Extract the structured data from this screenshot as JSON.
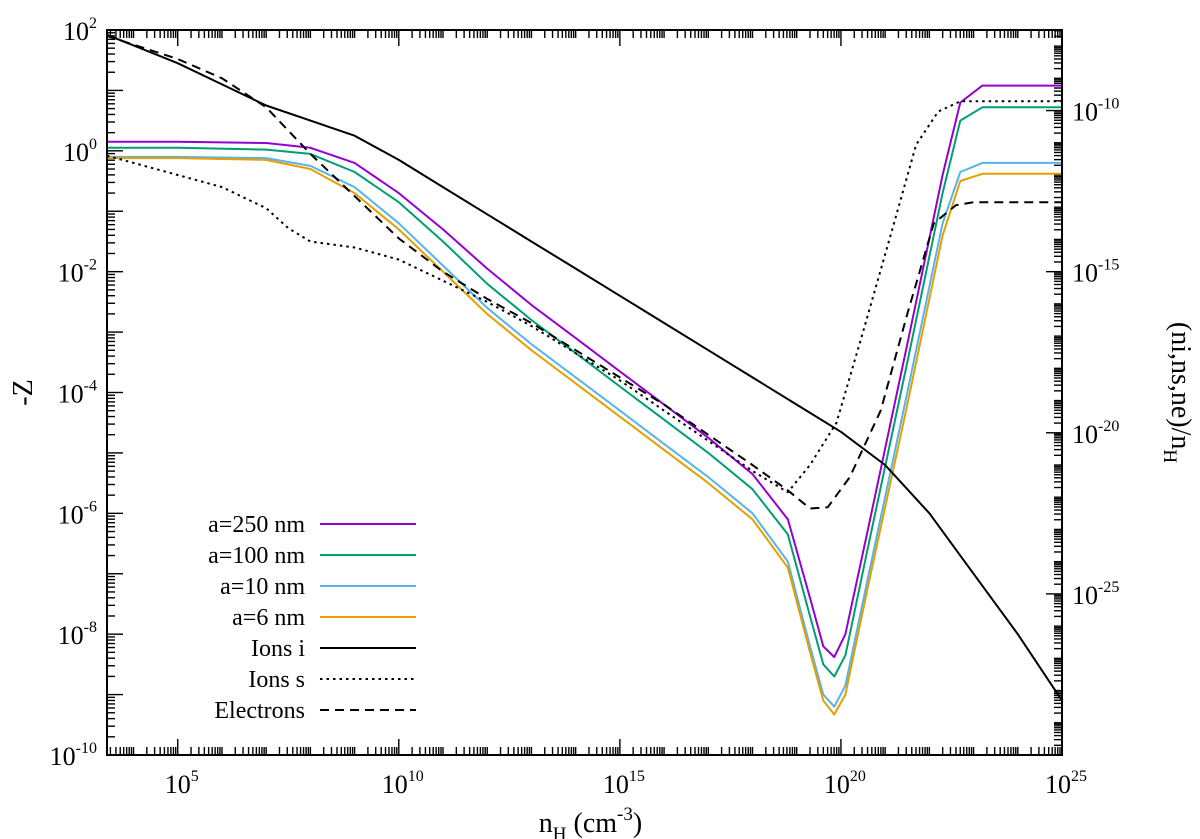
{
  "chart_data": {
    "type": "line",
    "title": "",
    "xlabel": {
      "base": "n",
      "sub": "H",
      "unit_open": " (cm",
      "unit_sup": "-3",
      "unit_close": ")"
    },
    "ylabel": "-Z",
    "y2label": {
      "text": "(ni,ns,ne)/n",
      "sub": "H"
    },
    "xscale": "log",
    "yscale": "log",
    "xlim_log10": [
      3.4,
      25
    ],
    "ylim_log10": [
      -10,
      2
    ],
    "y2lim_log10": [
      -30,
      -7.5
    ],
    "x_ticks": [
      {
        "base": "10",
        "exp": "5",
        "value_log10": 5
      },
      {
        "base": "10",
        "exp": "10",
        "value_log10": 10
      },
      {
        "base": "10",
        "exp": "15",
        "value_log10": 15
      },
      {
        "base": "10",
        "exp": "20",
        "value_log10": 20
      },
      {
        "base": "10",
        "exp": "25",
        "value_log10": 25
      }
    ],
    "y_ticks": [
      {
        "base": "10",
        "exp": "-10",
        "value_log10": -10
      },
      {
        "base": "10",
        "exp": "-8",
        "value_log10": -8
      },
      {
        "base": "10",
        "exp": "-6",
        "value_log10": -6
      },
      {
        "base": "10",
        "exp": "-4",
        "value_log10": -4
      },
      {
        "base": "10",
        "exp": "-2",
        "value_log10": -2
      },
      {
        "base": "10",
        "exp": "0",
        "value_log10": 0
      },
      {
        "base": "10",
        "exp": "2",
        "value_log10": 2
      }
    ],
    "y2_ticks": [
      {
        "base": "10",
        "exp": "-25",
        "value_log10": -25
      },
      {
        "base": "10",
        "exp": "-20",
        "value_log10": -20
      },
      {
        "base": "10",
        "exp": "-15",
        "value_log10": -15
      },
      {
        "base": "10",
        "exp": "-10",
        "value_log10": -10
      }
    ],
    "legend_position": "bottom-left",
    "series": [
      {
        "name": "a=250 nm",
        "color": "#9400D3",
        "dash": "solid",
        "axis": "y",
        "points_log10": [
          [
            3.4,
            0.15
          ],
          [
            5,
            0.15
          ],
          [
            7,
            0.13
          ],
          [
            8,
            0.05
          ],
          [
            9,
            -0.2
          ],
          [
            10,
            -0.7
          ],
          [
            11,
            -1.3
          ],
          [
            12,
            -1.95
          ],
          [
            13,
            -2.55
          ],
          [
            14,
            -3.1
          ],
          [
            15,
            -3.65
          ],
          [
            16,
            -4.2
          ],
          [
            17,
            -4.75
          ],
          [
            18,
            -5.35
          ],
          [
            18.8,
            -6.1
          ],
          [
            19.3,
            -7.4
          ],
          [
            19.6,
            -8.2
          ],
          [
            19.85,
            -8.38
          ],
          [
            20.1,
            -8.0
          ],
          [
            20.6,
            -6.3
          ],
          [
            21.5,
            -3.2
          ],
          [
            22.3,
            -0.4
          ],
          [
            22.7,
            0.8
          ],
          [
            23.2,
            1.08
          ],
          [
            25,
            1.08
          ]
        ]
      },
      {
        "name": "a=100 nm",
        "color": "#009E73",
        "dash": "solid",
        "axis": "y",
        "points_log10": [
          [
            3.4,
            0.05
          ],
          [
            5,
            0.05
          ],
          [
            7,
            0.02
          ],
          [
            8,
            -0.05
          ],
          [
            9,
            -0.35
          ],
          [
            10,
            -0.85
          ],
          [
            11,
            -1.5
          ],
          [
            12,
            -2.2
          ],
          [
            13,
            -2.8
          ],
          [
            14,
            -3.35
          ],
          [
            15,
            -3.9
          ],
          [
            16,
            -4.45
          ],
          [
            17,
            -5.0
          ],
          [
            18,
            -5.6
          ],
          [
            18.8,
            -6.35
          ],
          [
            19.3,
            -7.7
          ],
          [
            19.6,
            -8.5
          ],
          [
            19.85,
            -8.7
          ],
          [
            20.1,
            -8.35
          ],
          [
            20.6,
            -6.6
          ],
          [
            21.5,
            -3.5
          ],
          [
            22.3,
            -0.7
          ],
          [
            22.7,
            0.5
          ],
          [
            23.2,
            0.72
          ],
          [
            25,
            0.72
          ]
        ]
      },
      {
        "name": "a=10 nm",
        "color": "#56B4E9",
        "dash": "solid",
        "axis": "y",
        "points_log10": [
          [
            3.4,
            -0.1
          ],
          [
            5,
            -0.1
          ],
          [
            7,
            -0.12
          ],
          [
            8,
            -0.25
          ],
          [
            9,
            -0.6
          ],
          [
            10,
            -1.2
          ],
          [
            11,
            -1.9
          ],
          [
            12,
            -2.6
          ],
          [
            13,
            -3.2
          ],
          [
            14,
            -3.75
          ],
          [
            15,
            -4.3
          ],
          [
            16,
            -4.85
          ],
          [
            17,
            -5.4
          ],
          [
            18,
            -6.0
          ],
          [
            18.8,
            -6.8
          ],
          [
            19.3,
            -8.2
          ],
          [
            19.6,
            -9.0
          ],
          [
            19.85,
            -9.2
          ],
          [
            20.1,
            -8.85
          ],
          [
            20.6,
            -7.1
          ],
          [
            21.5,
            -4.0
          ],
          [
            22.3,
            -1.2
          ],
          [
            22.7,
            -0.35
          ],
          [
            23.2,
            -0.2
          ],
          [
            25,
            -0.2
          ]
        ]
      },
      {
        "name": "a=6 nm",
        "color": "#E69F00",
        "dash": "solid",
        "axis": "y",
        "points_log10": [
          [
            3.4,
            -0.12
          ],
          [
            5,
            -0.12
          ],
          [
            7,
            -0.15
          ],
          [
            8,
            -0.3
          ],
          [
            9,
            -0.7
          ],
          [
            10,
            -1.3
          ],
          [
            11,
            -2.0
          ],
          [
            12,
            -2.7
          ],
          [
            13,
            -3.3
          ],
          [
            14,
            -3.85
          ],
          [
            15,
            -4.4
          ],
          [
            16,
            -4.95
          ],
          [
            17,
            -5.5
          ],
          [
            18,
            -6.1
          ],
          [
            18.8,
            -6.9
          ],
          [
            19.3,
            -8.3
          ],
          [
            19.6,
            -9.1
          ],
          [
            19.85,
            -9.33
          ],
          [
            20.1,
            -9.0
          ],
          [
            20.6,
            -7.25
          ],
          [
            21.5,
            -4.2
          ],
          [
            22.3,
            -1.4
          ],
          [
            22.7,
            -0.5
          ],
          [
            23.2,
            -0.38
          ],
          [
            25,
            -0.38
          ]
        ]
      },
      {
        "name": "Ions i",
        "color": "#000000",
        "dash": "solid",
        "axis": "y",
        "points_log10": [
          [
            3.4,
            1.92
          ],
          [
            5,
            1.45
          ],
          [
            6,
            1.1
          ],
          [
            7,
            0.75
          ],
          [
            8,
            0.5
          ],
          [
            9,
            0.25
          ],
          [
            10,
            -0.15
          ],
          [
            11,
            -0.6
          ],
          [
            12,
            -1.05
          ],
          [
            13,
            -1.5
          ],
          [
            14,
            -1.95
          ],
          [
            15,
            -2.4
          ],
          [
            16,
            -2.85
          ],
          [
            17,
            -3.3
          ],
          [
            18,
            -3.75
          ],
          [
            19,
            -4.2
          ],
          [
            20,
            -4.65
          ],
          [
            21,
            -5.2
          ],
          [
            22,
            -6.0
          ],
          [
            23,
            -7.0
          ],
          [
            24,
            -8.0
          ],
          [
            25,
            -9.1
          ]
        ]
      },
      {
        "name": "Ions s",
        "color": "#000000",
        "dash": "dotted",
        "axis": "y",
        "points_log10": [
          [
            3.4,
            -0.08
          ],
          [
            4,
            -0.2
          ],
          [
            5,
            -0.4
          ],
          [
            6,
            -0.6
          ],
          [
            7,
            -0.95
          ],
          [
            7.5,
            -1.28
          ],
          [
            8,
            -1.5
          ],
          [
            9,
            -1.6
          ],
          [
            10,
            -1.8
          ],
          [
            11,
            -2.15
          ],
          [
            12,
            -2.5
          ],
          [
            13,
            -2.9
          ],
          [
            14,
            -3.35
          ],
          [
            15,
            -3.8
          ],
          [
            16,
            -4.3
          ],
          [
            17,
            -4.8
          ],
          [
            18,
            -5.3
          ],
          [
            18.8,
            -5.65
          ],
          [
            19.3,
            -5.2
          ],
          [
            19.9,
            -4.5
          ],
          [
            20.5,
            -3.0
          ],
          [
            21.2,
            -1.2
          ],
          [
            21.7,
            0.1
          ],
          [
            22.2,
            0.65
          ],
          [
            22.7,
            0.82
          ],
          [
            25,
            0.82
          ]
        ]
      },
      {
        "name": "Electrons",
        "color": "#000000",
        "dash": "dashed",
        "axis": "y",
        "points_log10": [
          [
            3.4,
            1.9
          ],
          [
            5,
            1.52
          ],
          [
            6,
            1.2
          ],
          [
            7,
            0.72
          ],
          [
            8,
            -0.05
          ],
          [
            9,
            -0.75
          ],
          [
            10,
            -1.45
          ],
          [
            11,
            -2.0
          ],
          [
            12,
            -2.45
          ],
          [
            13,
            -2.85
          ],
          [
            14,
            -3.3
          ],
          [
            15,
            -3.75
          ],
          [
            16,
            -4.2
          ],
          [
            17,
            -4.7
          ],
          [
            18,
            -5.2
          ],
          [
            18.8,
            -5.62
          ],
          [
            19.3,
            -5.92
          ],
          [
            19.7,
            -5.9
          ],
          [
            20.2,
            -5.4
          ],
          [
            20.9,
            -4.3
          ],
          [
            21.5,
            -2.7
          ],
          [
            22.1,
            -1.2
          ],
          [
            22.6,
            -0.9
          ],
          [
            23,
            -0.85
          ],
          [
            25,
            -0.85
          ]
        ]
      }
    ]
  }
}
